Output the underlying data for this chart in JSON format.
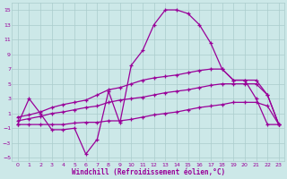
{
  "xlabel": "Windchill (Refroidissement éolien,°C)",
  "background_color": "#cce8e8",
  "grid_color": "#aacccc",
  "line_color": "#990099",
  "xlim": [
    -0.5,
    23.5
  ],
  "ylim": [
    -5.5,
    16
  ],
  "xticks": [
    0,
    1,
    2,
    3,
    4,
    5,
    6,
    7,
    8,
    9,
    10,
    11,
    12,
    13,
    14,
    15,
    16,
    17,
    18,
    19,
    20,
    21,
    22,
    23
  ],
  "yticks": [
    -5,
    -3,
    -1,
    1,
    3,
    5,
    7,
    9,
    11,
    13,
    15
  ],
  "line1_x": [
    0,
    1,
    2,
    3,
    4,
    5,
    6,
    7,
    8,
    9,
    10,
    11,
    12,
    13,
    14,
    15,
    16,
    17,
    18,
    19,
    20,
    21,
    22,
    23
  ],
  "line1_y": [
    -0.5,
    3.0,
    1.0,
    -1.2,
    -1.2,
    -1.0,
    -4.5,
    -2.5,
    4.0,
    -0.3,
    7.5,
    9.5,
    13.0,
    15.0,
    15.0,
    14.5,
    13.0,
    10.5,
    7.0,
    5.5,
    5.5,
    3.0,
    -0.5,
    -0.5
  ],
  "line2_x": [
    0,
    1,
    2,
    3,
    4,
    5,
    6,
    7,
    8,
    9,
    10,
    11,
    12,
    13,
    14,
    15,
    16,
    17,
    18,
    19,
    20,
    21,
    22,
    23
  ],
  "line2_y": [
    0.5,
    0.8,
    1.2,
    1.8,
    2.2,
    2.5,
    2.8,
    3.5,
    4.2,
    4.5,
    5.0,
    5.5,
    5.8,
    6.0,
    6.2,
    6.5,
    6.8,
    7.0,
    7.0,
    5.5,
    5.5,
    5.5,
    3.5,
    -0.5
  ],
  "line3_x": [
    0,
    1,
    2,
    3,
    4,
    5,
    6,
    7,
    8,
    9,
    10,
    11,
    12,
    13,
    14,
    15,
    16,
    17,
    18,
    19,
    20,
    21,
    22,
    23
  ],
  "line3_y": [
    0.0,
    0.3,
    0.6,
    1.0,
    1.2,
    1.5,
    1.8,
    2.0,
    2.5,
    2.8,
    3.0,
    3.2,
    3.5,
    3.8,
    4.0,
    4.2,
    4.5,
    4.8,
    5.0,
    5.0,
    5.0,
    5.0,
    3.5,
    -0.5
  ],
  "line4_x": [
    0,
    1,
    2,
    3,
    4,
    5,
    6,
    7,
    8,
    9,
    10,
    11,
    12,
    13,
    14,
    15,
    16,
    17,
    18,
    19,
    20,
    21,
    22,
    23
  ],
  "line4_y": [
    -0.5,
    -0.5,
    -0.5,
    -0.5,
    -0.5,
    -0.3,
    -0.2,
    -0.2,
    0.0,
    0.0,
    0.2,
    0.5,
    0.8,
    1.0,
    1.2,
    1.5,
    1.8,
    2.0,
    2.2,
    2.5,
    2.5,
    2.5,
    2.0,
    -0.5
  ]
}
